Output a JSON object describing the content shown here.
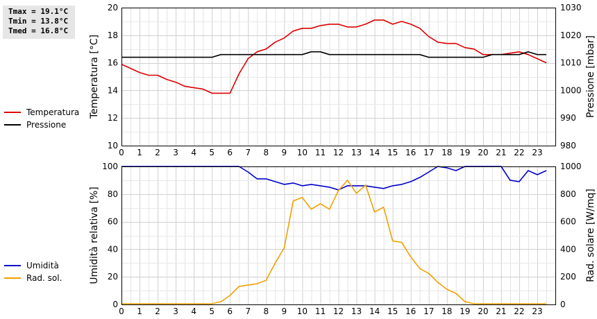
{
  "stats": {
    "tmax": "Tmax = 19.1°C",
    "tmin": "Tmin = 13.8°C",
    "tmed": "Tmed = 16.8°C"
  },
  "chart_data": [
    {
      "type": "line",
      "title": "",
      "xlabel": "",
      "ylabel": "Temperatura [°C]",
      "ylabel_right": "Pressione [mbar]",
      "xlim": [
        0,
        24
      ],
      "ylim": [
        10,
        20
      ],
      "ylim_right": [
        980,
        1030
      ],
      "x_ticks": [
        "0",
        "1",
        "2",
        "3",
        "4",
        "5",
        "6",
        "7",
        "8",
        "9",
        "10",
        "11",
        "12",
        "13",
        "14",
        "15",
        "16",
        "17",
        "18",
        "19",
        "20",
        "21",
        "22",
        "23"
      ],
      "y_ticks": [
        "10",
        "12",
        "14",
        "16",
        "18",
        "20"
      ],
      "y_ticks_right": [
        "980",
        "990",
        "1000",
        "1010",
        "1020",
        "1030"
      ],
      "grid": true,
      "legend": [
        "Temperatura",
        "Pressione"
      ],
      "series": [
        {
          "name": "Temperatura",
          "color": "#dd0000",
          "axis": "left",
          "x": [
            0,
            0.5,
            1,
            1.5,
            2,
            2.5,
            3,
            3.5,
            4,
            4.5,
            5,
            5.5,
            6,
            6.5,
            7,
            7.5,
            8,
            8.5,
            9,
            9.5,
            10,
            10.5,
            11,
            11.5,
            12,
            12.5,
            13,
            13.5,
            14,
            14.5,
            15,
            15.5,
            16,
            16.5,
            17,
            17.5,
            18,
            18.5,
            19,
            19.5,
            20,
            20.5,
            21,
            21.5,
            22,
            22.5,
            23,
            23.5
          ],
          "values": [
            15.9,
            15.6,
            15.3,
            15.1,
            15.1,
            14.8,
            14.6,
            14.3,
            14.2,
            14.1,
            13.8,
            13.8,
            13.8,
            15.2,
            16.3,
            16.8,
            17.0,
            17.5,
            17.8,
            18.3,
            18.5,
            18.5,
            18.7,
            18.8,
            18.8,
            18.6,
            18.6,
            18.8,
            19.1,
            19.1,
            18.8,
            19.0,
            18.8,
            18.5,
            17.9,
            17.5,
            17.4,
            17.4,
            17.1,
            17.0,
            16.6,
            16.6,
            16.6,
            16.7,
            16.8,
            16.6,
            16.3,
            16.0
          ]
        },
        {
          "name": "Pressione",
          "color": "#000000",
          "axis": "right",
          "x": [
            0,
            5,
            5.5,
            10,
            10.5,
            11,
            11.5,
            16.5,
            17,
            20,
            20.5,
            22,
            22.5,
            23,
            23.5
          ],
          "values": [
            1012,
            1012,
            1013,
            1013,
            1014,
            1014,
            1013,
            1013,
            1012,
            1012,
            1013,
            1013,
            1014,
            1013,
            1013
          ]
        }
      ]
    },
    {
      "type": "line",
      "title": "",
      "xlabel": "",
      "ylabel": "Umidità relativa [%]",
      "ylabel_right": "Rad. solare [W/mq]",
      "xlim": [
        0,
        24
      ],
      "ylim": [
        0,
        100
      ],
      "ylim_right": [
        0,
        1000
      ],
      "x_ticks": [
        "0",
        "1",
        "2",
        "3",
        "4",
        "5",
        "6",
        "7",
        "8",
        "9",
        "10",
        "11",
        "12",
        "13",
        "14",
        "15",
        "16",
        "17",
        "18",
        "19",
        "20",
        "21",
        "22",
        "23"
      ],
      "y_ticks": [
        "0",
        "20",
        "40",
        "60",
        "80",
        "100"
      ],
      "y_ticks_right": [
        "0",
        "200",
        "400",
        "600",
        "800",
        "1000"
      ],
      "grid": true,
      "legend": [
        "Umidità",
        "Rad. sol."
      ],
      "series": [
        {
          "name": "Umidità",
          "color": "#0000cc",
          "axis": "left",
          "x": [
            0,
            6.5,
            7,
            7.5,
            8,
            8.5,
            9,
            9.5,
            10,
            10.5,
            11,
            11.5,
            12,
            12.5,
            13,
            13.5,
            14,
            14.5,
            15,
            15.5,
            16,
            16.5,
            17,
            17.5,
            18,
            18.5,
            19,
            19.5,
            20,
            20.5,
            21,
            21.5,
            22,
            22.5,
            23,
            23.5
          ],
          "values": [
            100,
            100,
            96,
            91,
            91,
            89,
            87,
            88,
            86,
            87,
            86,
            85,
            83,
            86,
            86,
            86,
            85,
            84,
            86,
            87,
            89,
            92,
            96,
            100,
            99,
            97,
            100,
            100,
            100,
            100,
            100,
            90,
            89,
            97,
            94,
            97
          ]
        },
        {
          "name": "Rad. sol.",
          "color": "#f0a000",
          "axis": "right",
          "x": [
            0,
            5,
            5.5,
            6,
            6.5,
            7,
            7.5,
            8,
            8.5,
            9,
            9.5,
            10,
            10.5,
            11,
            11.5,
            12,
            12.5,
            13,
            13.5,
            14,
            14.5,
            15,
            15.5,
            16,
            16.5,
            17,
            17.5,
            18,
            18.5,
            19,
            19.5,
            23.5
          ],
          "values": [
            5,
            5,
            20,
            65,
            130,
            140,
            150,
            175,
            300,
            410,
            750,
            775,
            690,
            730,
            690,
            825,
            900,
            805,
            865,
            670,
            705,
            460,
            450,
            345,
            260,
            225,
            160,
            110,
            80,
            20,
            5,
            5
          ]
        }
      ]
    }
  ]
}
